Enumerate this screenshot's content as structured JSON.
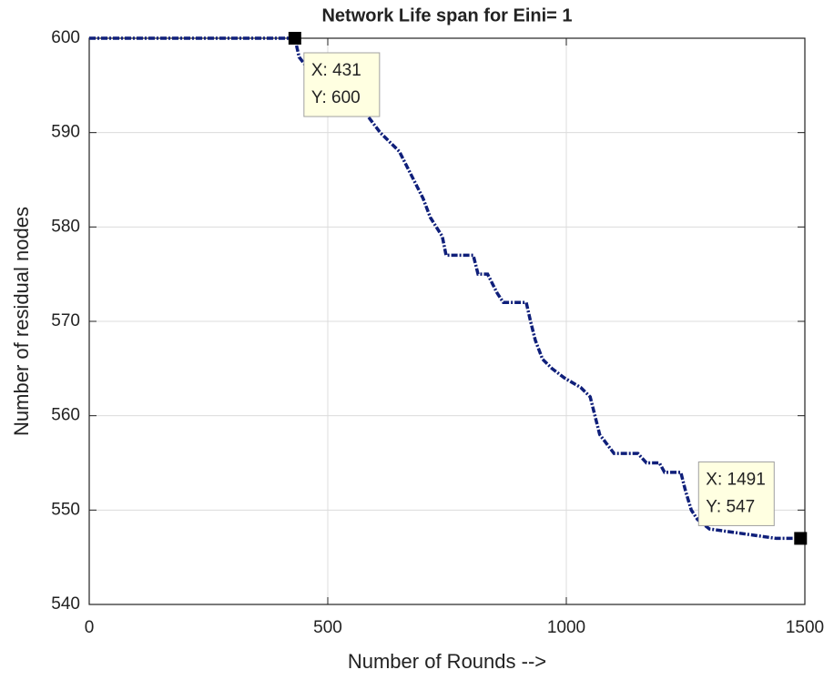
{
  "chart_data": {
    "type": "line",
    "title": "Network Life span for Eini= 1",
    "xlabel": "Number of Rounds -->",
    "ylabel": "Number of residual nodes",
    "x": [
      0,
      431,
      440,
      470,
      500,
      540,
      580,
      610,
      650,
      680,
      700,
      715,
      740,
      748,
      805,
      815,
      835,
      845,
      855,
      868,
      916,
      925,
      935,
      950,
      970,
      996,
      1030,
      1050,
      1060,
      1070,
      1085,
      1100,
      1150,
      1168,
      1195,
      1206,
      1240,
      1250,
      1262,
      1275,
      1300,
      1440,
      1491
    ],
    "series": [
      {
        "name": "residual nodes",
        "color": "#0f1f7a",
        "values": [
          600,
          600,
          598,
          596,
          594,
          593,
          592,
          590,
          588,
          585,
          583,
          581,
          579,
          577,
          577,
          575,
          575,
          574,
          573,
          572,
          572,
          570,
          568,
          566,
          565,
          564,
          563,
          562,
          560,
          558,
          557,
          556,
          556,
          555,
          555,
          554,
          554,
          552,
          550,
          549,
          548,
          547,
          547
        ]
      }
    ],
    "xlim": [
      0,
      1500
    ],
    "xticks": [
      0,
      500,
      1000,
      1500
    ],
    "ylim": [
      540,
      600
    ],
    "yticks": [
      540,
      550,
      560,
      570,
      580,
      590,
      600
    ],
    "grid": true,
    "annotations": [
      {
        "x": 431,
        "y": 600,
        "lines": [
          "X: 431",
          "Y: 600"
        ]
      },
      {
        "x": 1491,
        "y": 547,
        "lines": [
          "X: 1491",
          "Y: 547"
        ]
      }
    ]
  }
}
